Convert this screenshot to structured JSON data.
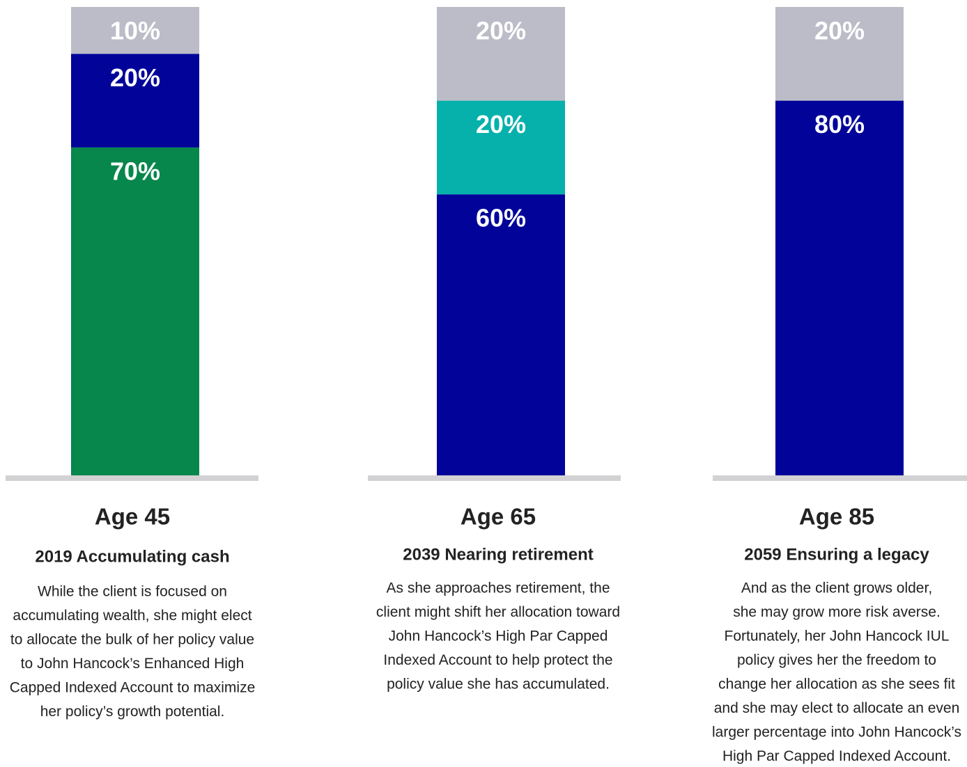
{
  "chart_data": {
    "type": "stacked_bar",
    "ylim": [
      0,
      100
    ],
    "panels": [
      {
        "title": "Age 45",
        "subtitle": "2019 Accumulating cash",
        "description": [
          "While the client is focused on",
          "accumulating wealth, she might elect",
          "to allocate the bulk of her policy value",
          "to John Hancock’s Enhanced High",
          "Capped Indexed Account to maximize",
          "her policy’s growth potential."
        ],
        "values": [
          70,
          20,
          10
        ],
        "value_labels": [
          "70%",
          "20%",
          "10%"
        ],
        "colors": [
          "#07874b",
          "#020499",
          "#bcbcc8"
        ]
      },
      {
        "title": "Age 65",
        "subtitle": "2039 Nearing retirement",
        "description": [
          "As she approaches retirement, the",
          "client might shift her allocation toward",
          "John Hancock’s High Par Capped",
          "Indexed Account to help protect the",
          "policy value she has accumulated."
        ],
        "values": [
          60,
          20,
          20
        ],
        "value_labels": [
          "60%",
          "20%",
          "20%"
        ],
        "colors": [
          "#020499",
          "#06b1ab",
          "#bcbcc8"
        ]
      },
      {
        "title": "Age 85",
        "subtitle": "2059 Ensuring a legacy",
        "description": [
          "And as the client grows older,",
          "she may grow more risk averse.",
          "Fortunately, her John Hancock IUL",
          "policy gives her the freedom to",
          "change her allocation as she sees fit",
          "and she may elect to allocate an even",
          "larger percentage into John Hancock’s",
          "High Par Capped Indexed Account."
        ],
        "values": [
          80,
          20
        ],
        "value_labels": [
          "80%",
          "20%"
        ],
        "colors": [
          "#020499",
          "#bcbcc8"
        ]
      }
    ]
  }
}
